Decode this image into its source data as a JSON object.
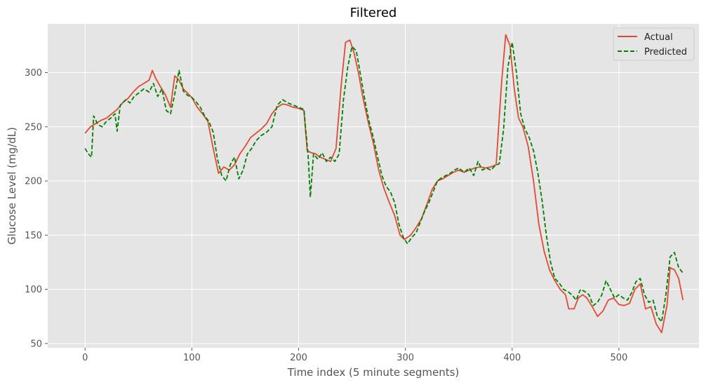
{
  "chart_data": {
    "type": "line",
    "title": "Filtered",
    "xlabel": "Time index (5 minute segments)",
    "ylabel": "Glucose Level (mg/dL)",
    "xlim": [
      -35,
      575
    ],
    "ylim": [
      46,
      345
    ],
    "xticks": [
      0,
      100,
      200,
      300,
      400,
      500
    ],
    "yticks": [
      50,
      100,
      150,
      200,
      250,
      300
    ],
    "grid": true,
    "legend_position": "top-right",
    "series": [
      {
        "name": "Actual",
        "color": "#E24A33",
        "dash": "solid",
        "points": [
          [
            0,
            244
          ],
          [
            5,
            250
          ],
          [
            10,
            253
          ],
          [
            15,
            256
          ],
          [
            20,
            258
          ],
          [
            25,
            262
          ],
          [
            30,
            266
          ],
          [
            35,
            272
          ],
          [
            40,
            276
          ],
          [
            45,
            282
          ],
          [
            50,
            287
          ],
          [
            55,
            290
          ],
          [
            60,
            293
          ],
          [
            63,
            302
          ],
          [
            66,
            295
          ],
          [
            70,
            288
          ],
          [
            75,
            280
          ],
          [
            80,
            268
          ],
          [
            84,
            297
          ],
          [
            88,
            293
          ],
          [
            92,
            285
          ],
          [
            96,
            281
          ],
          [
            100,
            277
          ],
          [
            105,
            268
          ],
          [
            110,
            262
          ],
          [
            115,
            255
          ],
          [
            120,
            230
          ],
          [
            125,
            207
          ],
          [
            130,
            213
          ],
          [
            135,
            210
          ],
          [
            140,
            215
          ],
          [
            145,
            225
          ],
          [
            150,
            232
          ],
          [
            155,
            240
          ],
          [
            160,
            244
          ],
          [
            165,
            248
          ],
          [
            170,
            253
          ],
          [
            175,
            262
          ],
          [
            180,
            268
          ],
          [
            185,
            271
          ],
          [
            190,
            270
          ],
          [
            195,
            268
          ],
          [
            200,
            267
          ],
          [
            205,
            265
          ],
          [
            208,
            228
          ],
          [
            212,
            226
          ],
          [
            216,
            225
          ],
          [
            220,
            222
          ],
          [
            225,
            220
          ],
          [
            230,
            218
          ],
          [
            235,
            230
          ],
          [
            240,
            290
          ],
          [
            244,
            328
          ],
          [
            248,
            330
          ],
          [
            252,
            318
          ],
          [
            256,
            300
          ],
          [
            260,
            278
          ],
          [
            265,
            255
          ],
          [
            270,
            235
          ],
          [
            275,
            210
          ],
          [
            280,
            193
          ],
          [
            285,
            180
          ],
          [
            290,
            168
          ],
          [
            295,
            150
          ],
          [
            299,
            146
          ],
          [
            305,
            150
          ],
          [
            310,
            157
          ],
          [
            315,
            165
          ],
          [
            320,
            178
          ],
          [
            325,
            192
          ],
          [
            330,
            200
          ],
          [
            335,
            202
          ],
          [
            340,
            205
          ],
          [
            345,
            208
          ],
          [
            350,
            210
          ],
          [
            355,
            208
          ],
          [
            360,
            210
          ],
          [
            365,
            212
          ],
          [
            370,
            213
          ],
          [
            375,
            212
          ],
          [
            380,
            213
          ],
          [
            385,
            215
          ],
          [
            390,
            290
          ],
          [
            394,
            335
          ],
          [
            398,
            325
          ],
          [
            402,
            285
          ],
          [
            406,
            258
          ],
          [
            410,
            250
          ],
          [
            415,
            232
          ],
          [
            420,
            200
          ],
          [
            425,
            160
          ],
          [
            430,
            135
          ],
          [
            435,
            118
          ],
          [
            440,
            108
          ],
          [
            445,
            100
          ],
          [
            450,
            95
          ],
          [
            453,
            82
          ],
          [
            458,
            82
          ],
          [
            462,
            92
          ],
          [
            466,
            95
          ],
          [
            470,
            92
          ],
          [
            475,
            84
          ],
          [
            480,
            75
          ],
          [
            485,
            80
          ],
          [
            490,
            90
          ],
          [
            495,
            92
          ],
          [
            500,
            86
          ],
          [
            505,
            85
          ],
          [
            510,
            87
          ],
          [
            515,
            100
          ],
          [
            520,
            105
          ],
          [
            525,
            82
          ],
          [
            530,
            84
          ],
          [
            535,
            68
          ],
          [
            540,
            60
          ],
          [
            545,
            85
          ],
          [
            548,
            120
          ],
          [
            552,
            118
          ],
          [
            556,
            110
          ],
          [
            560,
            90
          ]
        ]
      },
      {
        "name": "Predicted",
        "color": "#008000",
        "dash": "dashed",
        "points": [
          [
            0,
            230
          ],
          [
            3,
            225
          ],
          [
            6,
            222
          ],
          [
            8,
            260
          ],
          [
            12,
            252
          ],
          [
            16,
            250
          ],
          [
            20,
            255
          ],
          [
            24,
            258
          ],
          [
            28,
            262
          ],
          [
            30,
            246
          ],
          [
            33,
            270
          ],
          [
            38,
            275
          ],
          [
            42,
            272
          ],
          [
            46,
            278
          ],
          [
            50,
            281
          ],
          [
            55,
            285
          ],
          [
            60,
            282
          ],
          [
            64,
            290
          ],
          [
            68,
            278
          ],
          [
            72,
            285
          ],
          [
            76,
            265
          ],
          [
            80,
            262
          ],
          [
            84,
            280
          ],
          [
            88,
            302
          ],
          [
            92,
            283
          ],
          [
            96,
            279
          ],
          [
            100,
            277
          ],
          [
            104,
            273
          ],
          [
            108,
            268
          ],
          [
            112,
            260
          ],
          [
            116,
            255
          ],
          [
            120,
            245
          ],
          [
            124,
            220
          ],
          [
            128,
            205
          ],
          [
            132,
            200
          ],
          [
            136,
            215
          ],
          [
            140,
            222
          ],
          [
            144,
            202
          ],
          [
            148,
            210
          ],
          [
            152,
            225
          ],
          [
            156,
            230
          ],
          [
            160,
            237
          ],
          [
            165,
            242
          ],
          [
            170,
            245
          ],
          [
            175,
            250
          ],
          [
            180,
            270
          ],
          [
            185,
            275
          ],
          [
            190,
            272
          ],
          [
            195,
            270
          ],
          [
            200,
            268
          ],
          [
            205,
            266
          ],
          [
            209,
            222
          ],
          [
            211,
            185
          ],
          [
            214,
            225
          ],
          [
            218,
            220
          ],
          [
            222,
            226
          ],
          [
            226,
            218
          ],
          [
            230,
            222
          ],
          [
            234,
            218
          ],
          [
            238,
            225
          ],
          [
            242,
            275
          ],
          [
            246,
            305
          ],
          [
            250,
            324
          ],
          [
            254,
            320
          ],
          [
            258,
            298
          ],
          [
            262,
            275
          ],
          [
            266,
            255
          ],
          [
            270,
            240
          ],
          [
            274,
            222
          ],
          [
            278,
            205
          ],
          [
            282,
            195
          ],
          [
            286,
            190
          ],
          [
            290,
            180
          ],
          [
            294,
            160
          ],
          [
            298,
            148
          ],
          [
            302,
            142
          ],
          [
            306,
            148
          ],
          [
            310,
            152
          ],
          [
            314,
            162
          ],
          [
            318,
            172
          ],
          [
            322,
            180
          ],
          [
            326,
            190
          ],
          [
            330,
            200
          ],
          [
            334,
            203
          ],
          [
            338,
            205
          ],
          [
            342,
            207
          ],
          [
            346,
            210
          ],
          [
            350,
            212
          ],
          [
            355,
            208
          ],
          [
            360,
            212
          ],
          [
            364,
            205
          ],
          [
            368,
            218
          ],
          [
            372,
            210
          ],
          [
            376,
            212
          ],
          [
            380,
            210
          ],
          [
            384,
            214
          ],
          [
            388,
            216
          ],
          [
            392,
            248
          ],
          [
            396,
            305
          ],
          [
            400,
            328
          ],
          [
            404,
            300
          ],
          [
            408,
            262
          ],
          [
            412,
            248
          ],
          [
            416,
            240
          ],
          [
            420,
            228
          ],
          [
            424,
            208
          ],
          [
            428,
            182
          ],
          [
            432,
            150
          ],
          [
            436,
            125
          ],
          [
            440,
            110
          ],
          [
            444,
            106
          ],
          [
            448,
            100
          ],
          [
            452,
            98
          ],
          [
            456,
            95
          ],
          [
            460,
            90
          ],
          [
            464,
            100
          ],
          [
            468,
            98
          ],
          [
            472,
            95
          ],
          [
            476,
            85
          ],
          [
            480,
            88
          ],
          [
            484,
            95
          ],
          [
            488,
            108
          ],
          [
            492,
            100
          ],
          [
            496,
            92
          ],
          [
            500,
            95
          ],
          [
            504,
            92
          ],
          [
            508,
            90
          ],
          [
            512,
            97
          ],
          [
            516,
            107
          ],
          [
            520,
            110
          ],
          [
            524,
            95
          ],
          [
            528,
            88
          ],
          [
            532,
            90
          ],
          [
            536,
            75
          ],
          [
            540,
            70
          ],
          [
            544,
            95
          ],
          [
            548,
            130
          ],
          [
            552,
            134
          ],
          [
            556,
            120
          ],
          [
            560,
            115
          ]
        ]
      }
    ]
  }
}
